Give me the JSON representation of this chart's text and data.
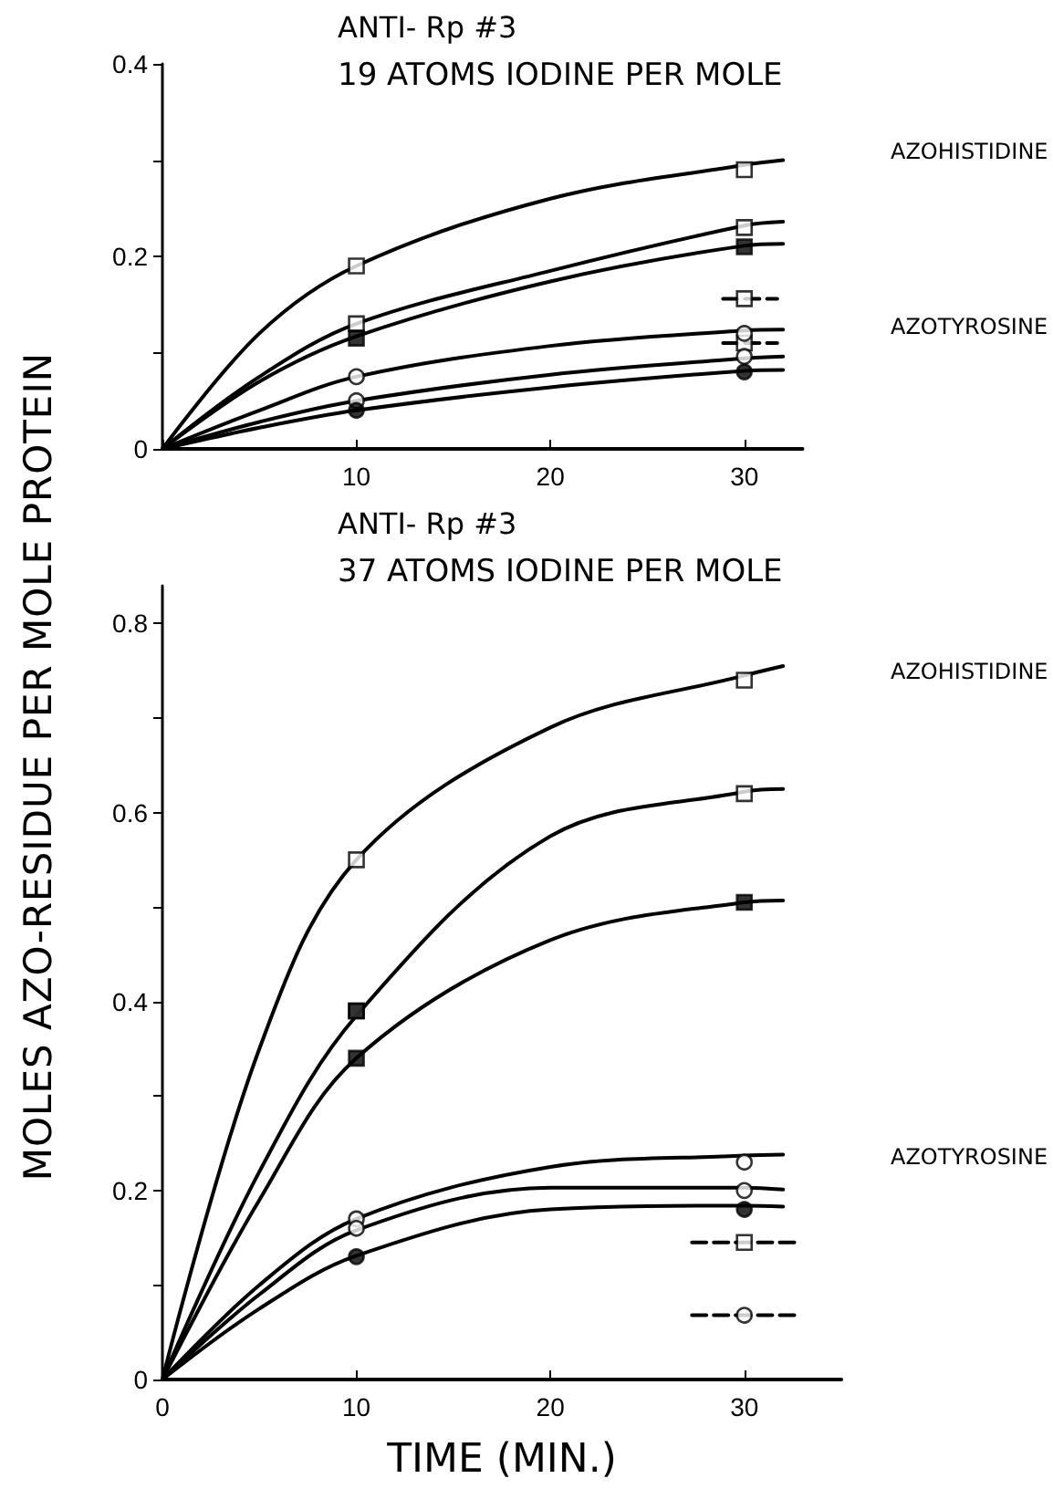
{
  "chart_data": [
    {
      "type": "line",
      "title": "ANTI- Rp #3",
      "subtitle": "19 ATOMS IODINE PER MOLE",
      "ylabel": "MOLES AZO-RESIDUE PER MOLE PROTEIN",
      "xlim": [
        0,
        33
      ],
      "xticks": [
        {
          "value": 0,
          "label": null
        },
        10,
        20,
        30
      ],
      "ylim": [
        0,
        0.4
      ],
      "yticks": [
        0,
        {
          "value": 0.1,
          "label": null
        },
        0.2,
        {
          "value": 0.3,
          "label": null
        },
        0.4
      ],
      "grid": false,
      "annotations": [
        "AZOHISTIDINE",
        "AZOTYROSINE"
      ],
      "series": [
        {
          "type": "line",
          "color": "#000000",
          "marker": "none",
          "x": [
            0,
            5,
            10,
            20,
            30,
            32
          ],
          "values": [
            0,
            0.12,
            0.19,
            0.26,
            0.295,
            0.3
          ]
        },
        {
          "type": "line",
          "color": "#000000",
          "marker": "none",
          "x": [
            0,
            5,
            10,
            20,
            30,
            32
          ],
          "values": [
            0,
            0.075,
            0.13,
            0.185,
            0.232,
            0.236
          ]
        },
        {
          "type": "line",
          "color": "#000000",
          "marker": "none",
          "x": [
            0,
            5,
            10,
            20,
            30,
            32
          ],
          "values": [
            0,
            0.07,
            0.117,
            0.174,
            0.211,
            0.213
          ]
        },
        {
          "type": "line",
          "color": "#000000",
          "marker": "none",
          "x": [
            0,
            5,
            10,
            20,
            30,
            32
          ],
          "values": [
            0,
            0.04,
            0.075,
            0.107,
            0.123,
            0.124
          ]
        },
        {
          "type": "line",
          "color": "#000000",
          "marker": "none",
          "x": [
            0,
            5,
            10,
            20,
            30,
            32
          ],
          "values": [
            0,
            0.028,
            0.05,
            0.077,
            0.094,
            0.096
          ]
        },
        {
          "type": "line",
          "color": "#000000",
          "marker": "none",
          "x": [
            0,
            5,
            10,
            20,
            30,
            32
          ],
          "values": [
            0,
            0.022,
            0.04,
            0.064,
            0.081,
            0.082
          ]
        },
        {
          "type": "line",
          "color": "#000000",
          "marker": "none",
          "line_style": "dashed",
          "x": [
            28.9,
            31.7
          ],
          "values": [
            0.156,
            0.156
          ]
        },
        {
          "type": "line",
          "color": "#000000",
          "marker": "none",
          "line_style": "dashed",
          "x": [
            28.9,
            31.7
          ],
          "values": [
            0.11,
            0.11
          ]
        },
        {
          "type": "scatter",
          "color": "#ffffff",
          "marker": "square",
          "x": [
            10,
            30,
            10,
            30,
            30,
            30
          ],
          "values": [
            0.19,
            0.29,
            0.13,
            0.23,
            0.156,
            0.11
          ]
        },
        {
          "type": "scatter",
          "color": "#000000",
          "marker": "square",
          "x": [
            10,
            30
          ],
          "values": [
            0.115,
            0.21
          ]
        },
        {
          "type": "scatter",
          "color": "#ffffff",
          "marker": "circle",
          "x": [
            10,
            30,
            10,
            30
          ],
          "values": [
            0.075,
            0.12,
            0.05,
            0.096
          ]
        },
        {
          "type": "scatter",
          "color": "#000000",
          "marker": "circle",
          "x": [
            10,
            30
          ],
          "values": [
            0.04,
            0.08
          ]
        }
      ]
    },
    {
      "type": "line",
      "title": "ANTI- Rp #3",
      "subtitle": "37 ATOMS IODINE PER MOLE",
      "xlabel": "TIME (MIN.)",
      "xlim": [
        0,
        35
      ],
      "xticks": [
        0,
        10,
        20,
        30
      ],
      "ylim": [
        0,
        0.84
      ],
      "yticks": [
        0,
        {
          "value": 0.1,
          "label": null
        },
        0.2,
        {
          "value": 0.3,
          "label": null
        },
        0.4,
        {
          "value": 0.5,
          "label": null
        },
        0.6,
        {
          "value": 0.7,
          "label": null
        },
        0.8
      ],
      "grid": false,
      "annotations": [
        "AZOHISTIDINE",
        "AZOTYROSINE"
      ],
      "series": [
        {
          "type": "line",
          "color": "#000000",
          "marker": "none",
          "x": [
            0,
            5,
            10,
            20,
            30,
            32
          ],
          "values": [
            0,
            0.35,
            0.55,
            0.69,
            0.745,
            0.755
          ]
        },
        {
          "type": "line",
          "color": "#000000",
          "marker": "none",
          "x": [
            0,
            5,
            10,
            20,
            30,
            32
          ],
          "values": [
            0,
            0.22,
            0.385,
            0.575,
            0.622,
            0.625
          ]
        },
        {
          "type": "line",
          "color": "#000000",
          "marker": "none",
          "x": [
            0,
            5,
            10,
            20,
            30,
            32
          ],
          "values": [
            0,
            0.19,
            0.34,
            0.465,
            0.505,
            0.507
          ]
        },
        {
          "type": "line",
          "color": "#000000",
          "marker": "none",
          "x": [
            0,
            5,
            10,
            20,
            30,
            32
          ],
          "values": [
            0,
            0.1,
            0.17,
            0.225,
            0.237,
            0.238
          ]
        },
        {
          "type": "line",
          "color": "#000000",
          "marker": "none",
          "x": [
            0,
            5,
            10,
            20,
            30,
            32
          ],
          "values": [
            0,
            0.09,
            0.158,
            0.203,
            0.203,
            0.201
          ]
        },
        {
          "type": "line",
          "color": "#000000",
          "marker": "none",
          "x": [
            0,
            5,
            10,
            20,
            30,
            32
          ],
          "values": [
            0,
            0.075,
            0.131,
            0.18,
            0.184,
            0.183
          ]
        },
        {
          "type": "line",
          "color": "#000000",
          "marker": "none",
          "line_style": "dashed",
          "x": [
            27.3,
            32.9
          ],
          "values": [
            0.145,
            0.145
          ]
        },
        {
          "type": "line",
          "color": "#000000",
          "marker": "none",
          "line_style": "dashed",
          "x": [
            27.3,
            32.9
          ],
          "values": [
            0.068,
            0.068
          ]
        },
        {
          "type": "scatter",
          "color": "#ffffff",
          "marker": "square",
          "x": [
            10,
            30,
            10,
            30,
            30
          ],
          "values": [
            0.55,
            0.74,
            0.39,
            0.62,
            0.145
          ]
        },
        {
          "type": "scatter",
          "color": "#000000",
          "marker": "square",
          "x": [
            10,
            10,
            30
          ],
          "values": [
            0.39,
            0.34,
            0.505
          ]
        },
        {
          "type": "scatter",
          "color": "#ffffff",
          "marker": "circle",
          "x": [
            10,
            30,
            10,
            30,
            30
          ],
          "values": [
            0.17,
            0.23,
            0.16,
            0.2,
            0.068
          ]
        },
        {
          "type": "scatter",
          "color": "#000000",
          "marker": "circle",
          "x": [
            10,
            30
          ],
          "values": [
            0.13,
            0.18
          ]
        }
      ]
    }
  ]
}
